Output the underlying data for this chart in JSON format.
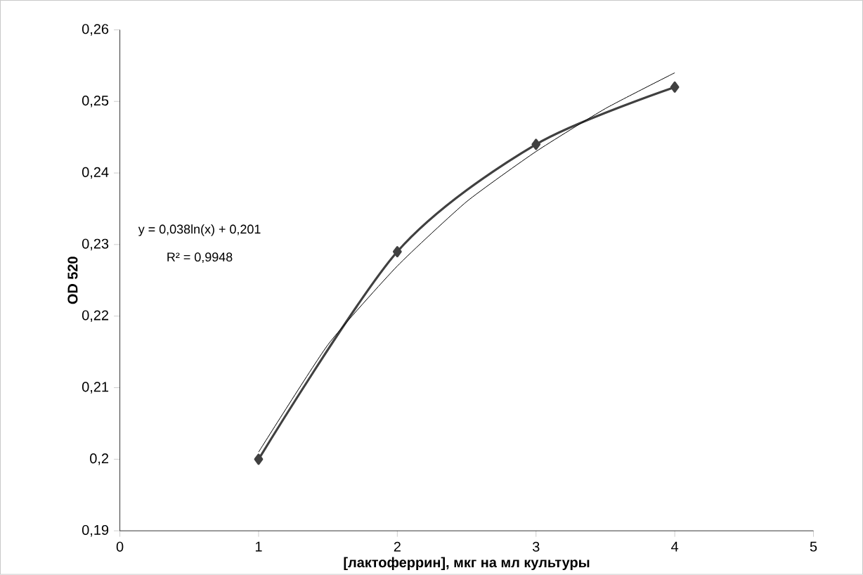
{
  "chart_data": {
    "type": "line",
    "xlabel": "[лактоферрин], мкг на мл культуры",
    "ylabel": "OD 520",
    "annotations": [
      "y = 0,038ln(x) + 0,201",
      "R² = 0,9948"
    ],
    "xlim": [
      0,
      5
    ],
    "xticks": [
      0,
      1,
      2,
      3,
      4,
      5
    ],
    "ylim": [
      0.19,
      0.26
    ],
    "yticks": [
      {
        "value": 0.19,
        "label": "0,19"
      },
      {
        "value": 0.2,
        "label": "0,2"
      },
      {
        "value": 0.21,
        "label": "0,21"
      },
      {
        "value": 0.22,
        "label": "0,22"
      },
      {
        "value": 0.23,
        "label": "0,23"
      },
      {
        "value": 0.24,
        "label": "0,24"
      },
      {
        "value": 0.25,
        "label": "0,25"
      },
      {
        "value": 0.26,
        "label": "0,26"
      }
    ],
    "grid": false,
    "series": [
      {
        "color": "#404040",
        "marker": "diamond",
        "x": [
          1,
          2,
          3,
          4
        ],
        "values": [
          0.2,
          0.229,
          0.244,
          0.252
        ]
      },
      {
        "color": "#000000",
        "marker": "none",
        "x": [
          1,
          1.5,
          2,
          2.5,
          3,
          3.5,
          4
        ],
        "values": [
          0.201,
          0.216,
          0.227,
          0.236,
          0.243,
          0.249,
          0.254
        ]
      }
    ]
  }
}
